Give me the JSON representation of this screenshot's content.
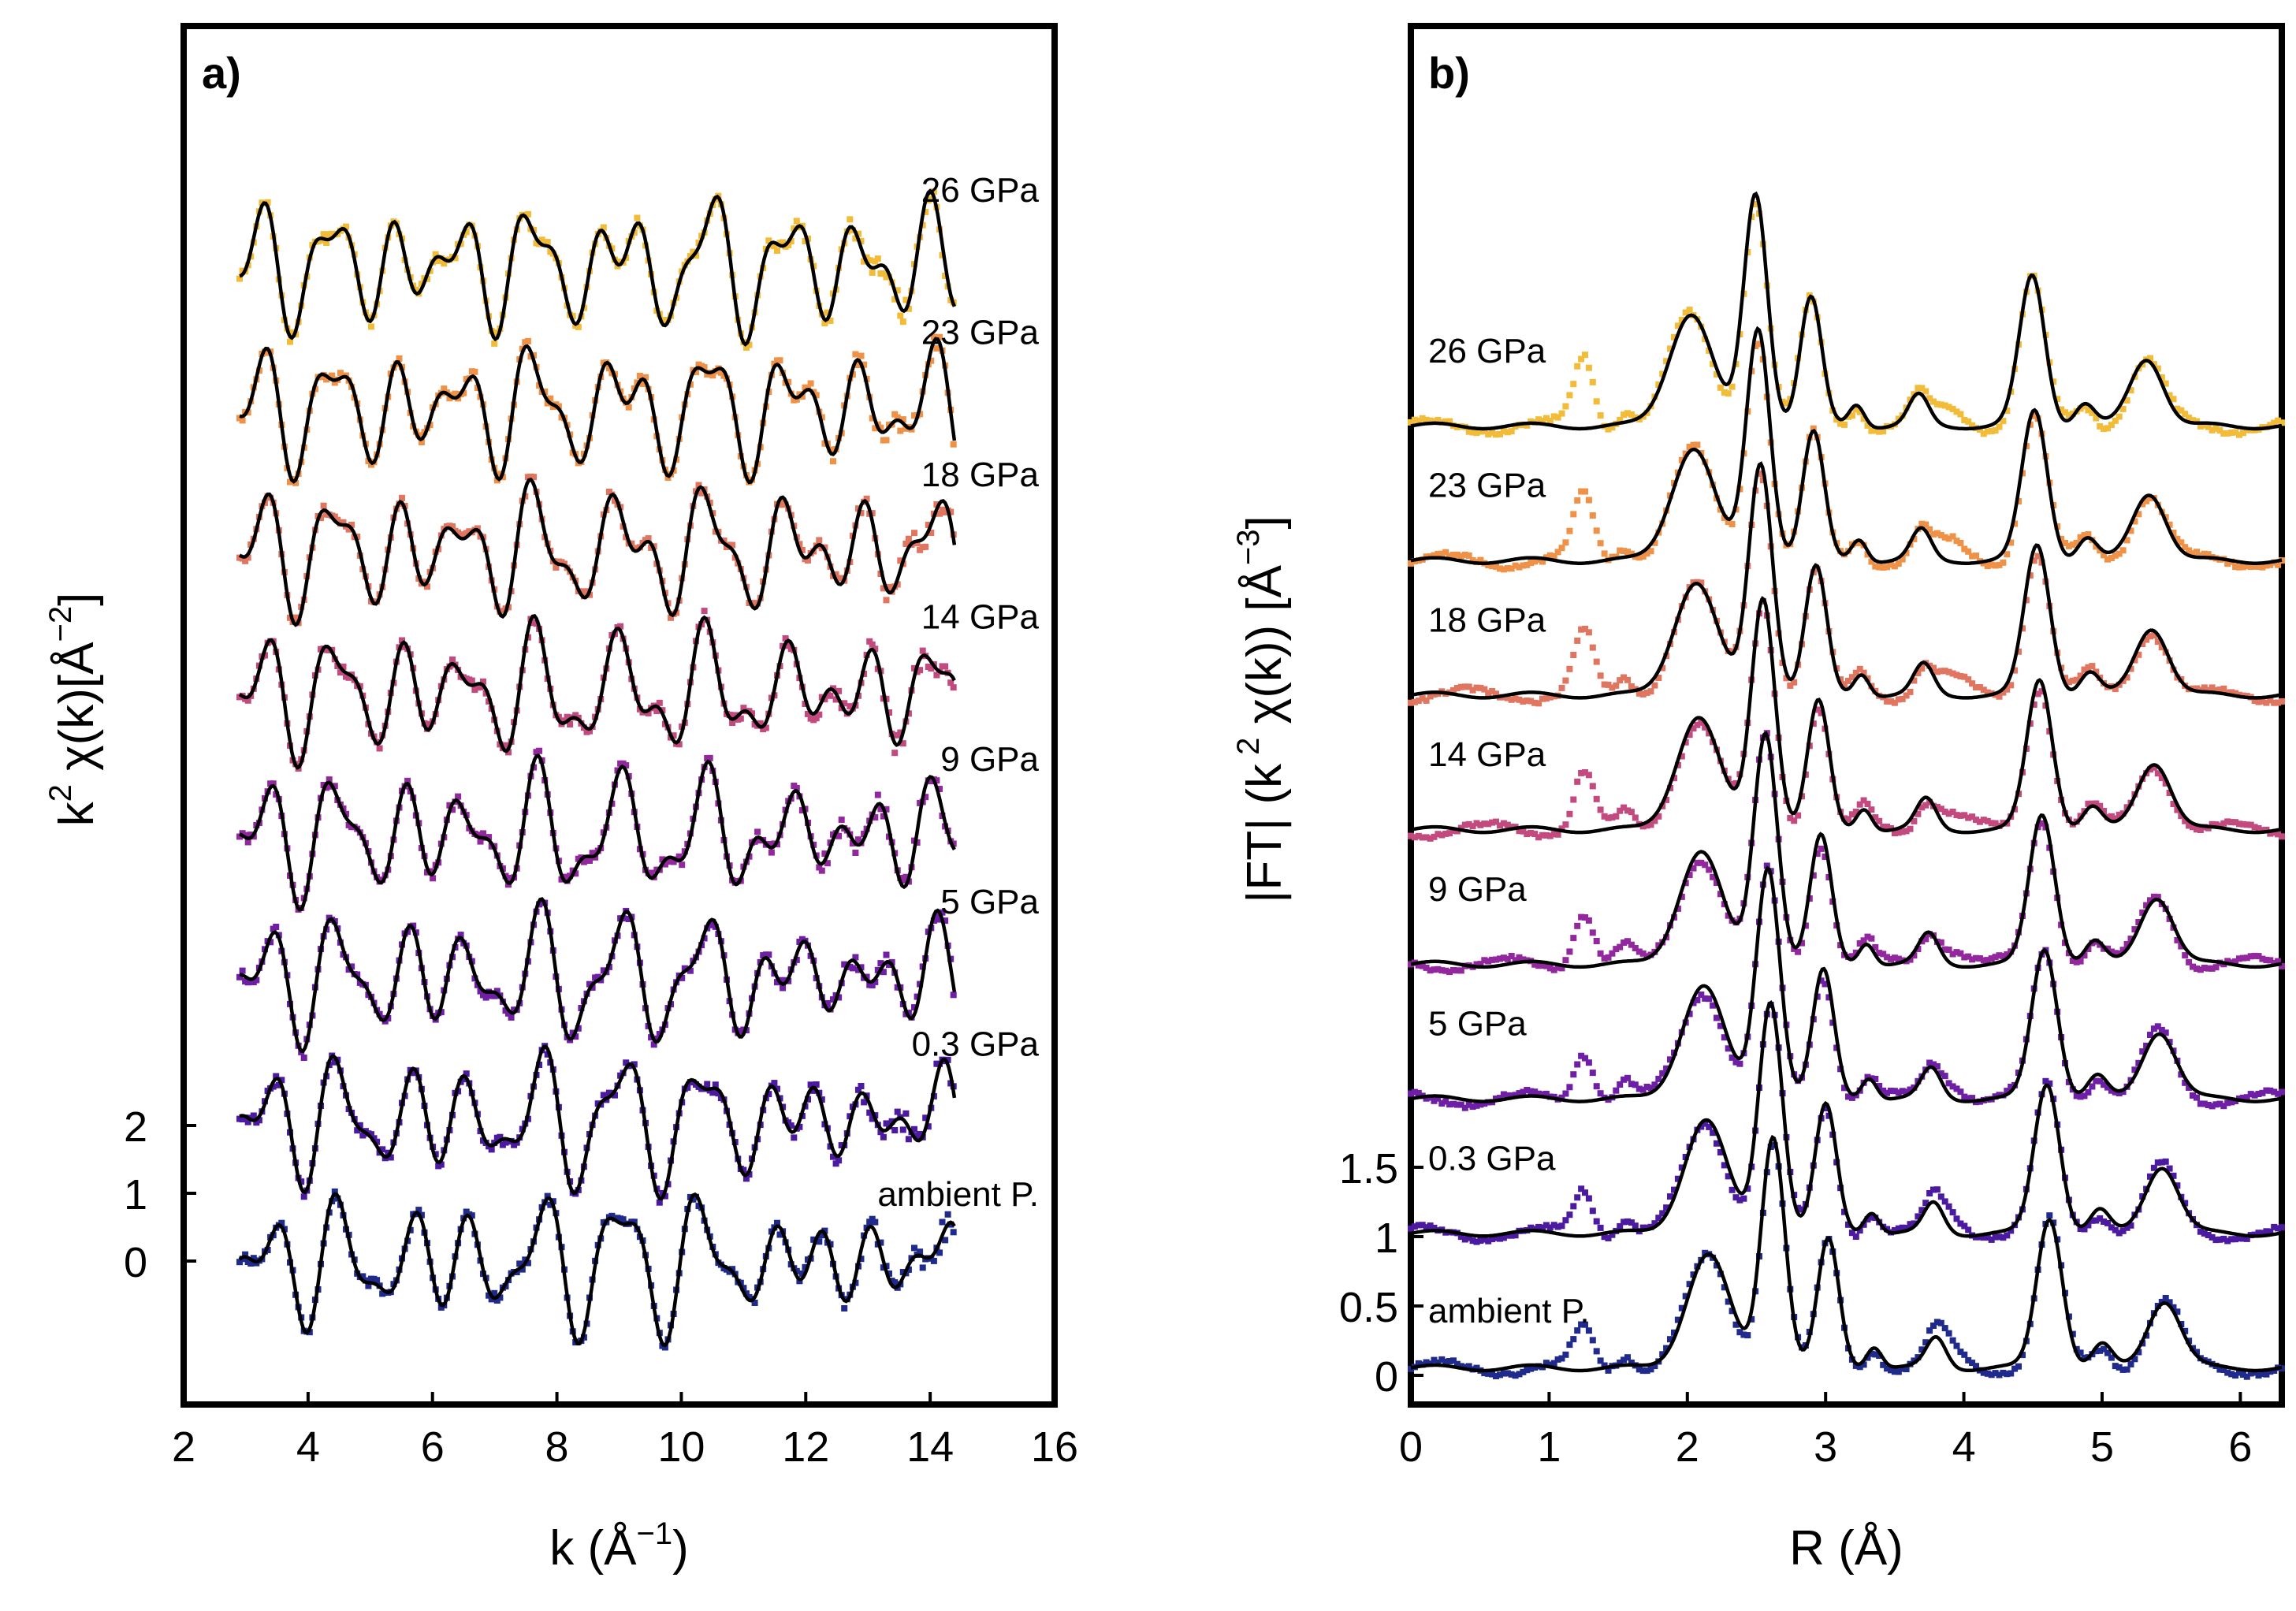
{
  "chart_data": [
    {
      "type": "line",
      "panel_label": "a)",
      "title": "",
      "xlabel": "k (Å",
      "xlabel_sup": "−1",
      "xlabel_end": ")",
      "ylabel_main": "k",
      "ylabel_sup1": "2",
      "ylabel_mid": " χ(k)[Å",
      "ylabel_sup2": "−2",
      "ylabel_end": "]",
      "xlim": [
        2,
        16
      ],
      "x_ticks": [
        "2",
        "4",
        "6",
        "8",
        "10",
        "12",
        "14",
        "16"
      ],
      "y_ticks": [
        "2",
        "1",
        "0"
      ],
      "data_range": [
        2.9,
        14.4
      ],
      "spacing": 2.1,
      "series": [
        {
          "name": "ambient P.",
          "color": "#1f2a8c"
        },
        {
          "name": "0.3 GPa",
          "color": "#4b1aa0"
        },
        {
          "name": "5 GPa",
          "color": "#6f1fa6"
        },
        {
          "name": "9 GPa",
          "color": "#92279e"
        },
        {
          "name": "14 GPa",
          "color": "#c24a7e"
        },
        {
          "name": "18 GPa",
          "color": "#e07560"
        },
        {
          "name": "23 GPa",
          "color": "#ef9248"
        },
        {
          "name": "26 GPa",
          "color": "#f2bb38"
        }
      ]
    },
    {
      "type": "line",
      "panel_label": "b)",
      "title": "",
      "xlabel": "R (Å)",
      "ylabel_main": "|FT| (k",
      "ylabel_sup1": " 2",
      "ylabel_mid": " χ(k)) [Å",
      "ylabel_sup2": "−3",
      "ylabel_end": "]",
      "xlim": [
        0,
        6.3
      ],
      "x_ticks": [
        "0",
        "1",
        "2",
        "3",
        "4",
        "5",
        "6"
      ],
      "y_ticks": [
        "1.5",
        "1",
        "0.5",
        "0"
      ],
      "spacing": 0.97,
      "series": [
        {
          "name": "ambient P.",
          "color": "#1f2a8c"
        },
        {
          "name": "0.3 GPa",
          "color": "#4b1aa0"
        },
        {
          "name": "5 GPa",
          "color": "#6f1fa6"
        },
        {
          "name": "9 GPa",
          "color": "#92279e"
        },
        {
          "name": "14 GPa",
          "color": "#c24a7e"
        },
        {
          "name": "18 GPa",
          "color": "#e07560"
        },
        {
          "name": "23 GPa",
          "color": "#ef9248"
        },
        {
          "name": "26 GPa",
          "color": "#f2bb38"
        }
      ]
    }
  ]
}
